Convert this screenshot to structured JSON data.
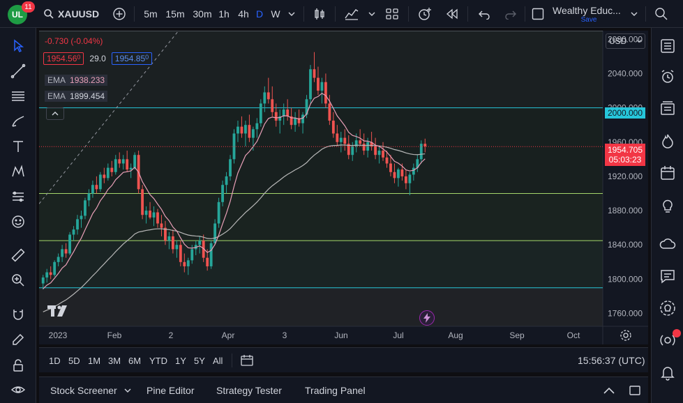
{
  "header": {
    "logo_text": "UL",
    "notification_count": "11",
    "symbol": "XAUUSD",
    "intervals": [
      "5m",
      "15m",
      "30m",
      "1h",
      "4h",
      "D",
      "W"
    ],
    "active_interval": "D",
    "layout_name": "Wealthy Educ...",
    "save_label": "Save"
  },
  "legend": {
    "change": "-0.730 (-0.04%)",
    "bid": "1954.56",
    "bid_suffix": "0",
    "spread": "29.0",
    "ask": "1954.85",
    "ask_suffix": "0",
    "ema1_label": "EMA",
    "ema1_value": "1938.233",
    "ema2_label": "EMA",
    "ema2_value": "1899.454"
  },
  "price_axis": {
    "currency": "USD",
    "ticks": [
      "2080.000",
      "2040.000",
      "2000.000",
      "1960.000",
      "1920.000",
      "1880.000",
      "1840.000",
      "1800.000",
      "1760.000"
    ],
    "highlight_2000": "2000.000",
    "current_price": "1954.705",
    "countdown": "05:03:23"
  },
  "time_axis": {
    "labels": [
      "2023",
      "Feb",
      "2",
      "Apr",
      "3",
      "Jun",
      "Jul",
      "Aug",
      "Sep",
      "Oct"
    ]
  },
  "range_bar": {
    "ranges": [
      "1D",
      "5D",
      "1M",
      "3M",
      "6M",
      "YTD",
      "1Y",
      "5Y",
      "All"
    ],
    "clock": "15:56:37 (UTC)"
  },
  "bottom_panel": {
    "tabs": [
      "Stock Screener",
      "Pine Editor",
      "Strategy Tester",
      "Trading Panel"
    ]
  },
  "colors": {
    "up": "#26a69a",
    "down": "#ef5350",
    "ema_fast": "#e9a0b8",
    "ema_slow": "#b8b8b8",
    "hline_cyan": "#26c6da",
    "hline_green": "#a5d66b",
    "accent": "#2962ff"
  },
  "chart_data": {
    "type": "candlestick",
    "ylim": [
      1745,
      2090
    ],
    "horizontal_levels": [
      2000,
      1900,
      1845,
      1790
    ],
    "candles": [
      [
        1795,
        1805,
        1788,
        1802
      ],
      [
        1802,
        1812,
        1796,
        1808
      ],
      [
        1808,
        1815,
        1800,
        1805
      ],
      [
        1805,
        1822,
        1803,
        1820
      ],
      [
        1820,
        1830,
        1815,
        1826
      ],
      [
        1826,
        1840,
        1820,
        1835
      ],
      [
        1835,
        1842,
        1825,
        1830
      ],
      [
        1830,
        1855,
        1828,
        1852
      ],
      [
        1852,
        1862,
        1845,
        1858
      ],
      [
        1858,
        1875,
        1852,
        1870
      ],
      [
        1870,
        1880,
        1860,
        1874
      ],
      [
        1874,
        1895,
        1870,
        1892
      ],
      [
        1892,
        1905,
        1885,
        1900
      ],
      [
        1900,
        1915,
        1895,
        1910
      ],
      [
        1910,
        1920,
        1900,
        1905
      ],
      [
        1905,
        1925,
        1902,
        1922
      ],
      [
        1922,
        1930,
        1912,
        1918
      ],
      [
        1918,
        1935,
        1915,
        1930
      ],
      [
        1930,
        1938,
        1920,
        1925
      ],
      [
        1925,
        1945,
        1922,
        1940
      ],
      [
        1940,
        1948,
        1930,
        1935
      ],
      [
        1935,
        1945,
        1928,
        1940
      ],
      [
        1940,
        1950,
        1925,
        1928
      ],
      [
        1928,
        1935,
        1918,
        1930
      ],
      [
        1930,
        1948,
        1928,
        1945
      ],
      [
        1945,
        1950,
        1900,
        1905
      ],
      [
        1905,
        1910,
        1870,
        1875
      ],
      [
        1875,
        1885,
        1865,
        1880
      ],
      [
        1880,
        1890,
        1870,
        1872
      ],
      [
        1872,
        1885,
        1862,
        1878
      ],
      [
        1878,
        1882,
        1860,
        1865
      ],
      [
        1865,
        1875,
        1850,
        1860
      ],
      [
        1860,
        1868,
        1840,
        1845
      ],
      [
        1845,
        1855,
        1835,
        1850
      ],
      [
        1850,
        1858,
        1830,
        1835
      ],
      [
        1835,
        1845,
        1825,
        1840
      ],
      [
        1840,
        1845,
        1815,
        1820
      ],
      [
        1820,
        1830,
        1808,
        1815
      ],
      [
        1815,
        1825,
        1805,
        1822
      ],
      [
        1822,
        1840,
        1818,
        1835
      ],
      [
        1835,
        1845,
        1828,
        1840
      ],
      [
        1840,
        1850,
        1830,
        1845
      ],
      [
        1845,
        1852,
        1820,
        1825
      ],
      [
        1825,
        1835,
        1810,
        1815
      ],
      [
        1815,
        1845,
        1812,
        1842
      ],
      [
        1842,
        1870,
        1840,
        1865
      ],
      [
        1865,
        1895,
        1860,
        1890
      ],
      [
        1890,
        1915,
        1885,
        1910
      ],
      [
        1910,
        1925,
        1900,
        1920
      ],
      [
        1920,
        1945,
        1915,
        1940
      ],
      [
        1940,
        1975,
        1935,
        1970
      ],
      [
        1970,
        1985,
        1960,
        1978
      ],
      [
        1978,
        1990,
        1965,
        1970
      ],
      [
        1970,
        1985,
        1955,
        1980
      ],
      [
        1980,
        1992,
        1960,
        1965
      ],
      [
        1965,
        1978,
        1950,
        1975
      ],
      [
        1975,
        1988,
        1965,
        1982
      ],
      [
        1982,
        2010,
        1978,
        2005
      ],
      [
        2005,
        2025,
        1995,
        2018
      ],
      [
        2018,
        2035,
        2005,
        2010
      ],
      [
        2010,
        2025,
        1990,
        1995
      ],
      [
        1995,
        2005,
        1978,
        1985
      ],
      [
        1985,
        1998,
        1970,
        1990
      ],
      [
        1990,
        2005,
        1980,
        1998
      ],
      [
        1998,
        2010,
        1985,
        1990
      ],
      [
        1990,
        2000,
        1975,
        1980
      ],
      [
        1980,
        1995,
        1972,
        1988
      ],
      [
        1988,
        1998,
        1978,
        1982
      ],
      [
        1982,
        1995,
        1970,
        1992
      ],
      [
        1992,
        2015,
        1988,
        2010
      ],
      [
        2010,
        2050,
        2005,
        2045
      ],
      [
        2045,
        2065,
        2030,
        2035
      ],
      [
        2035,
        2048,
        2015,
        2020
      ],
      [
        2020,
        2035,
        2005,
        2030
      ],
      [
        2030,
        2040,
        2000,
        2005
      ],
      [
        2005,
        2015,
        1980,
        1985
      ],
      [
        1985,
        1995,
        1965,
        1970
      ],
      [
        1970,
        1980,
        1955,
        1960
      ],
      [
        1960,
        1972,
        1948,
        1965
      ],
      [
        1965,
        1975,
        1950,
        1958
      ],
      [
        1958,
        1968,
        1940,
        1945
      ],
      [
        1945,
        1960,
        1938,
        1955
      ],
      [
        1955,
        1970,
        1948,
        1962
      ],
      [
        1962,
        1975,
        1955,
        1958
      ],
      [
        1958,
        1970,
        1945,
        1950
      ],
      [
        1950,
        1965,
        1942,
        1960
      ],
      [
        1960,
        1972,
        1950,
        1955
      ],
      [
        1955,
        1965,
        1940,
        1945
      ],
      [
        1945,
        1955,
        1935,
        1950
      ],
      [
        1950,
        1960,
        1938,
        1942
      ],
      [
        1942,
        1950,
        1930,
        1935
      ],
      [
        1935,
        1945,
        1920,
        1925
      ],
      [
        1925,
        1935,
        1912,
        1918
      ],
      [
        1918,
        1930,
        1908,
        1928
      ],
      [
        1928,
        1935,
        1915,
        1920
      ],
      [
        1920,
        1928,
        1905,
        1912
      ],
      [
        1912,
        1925,
        1898,
        1922
      ],
      [
        1922,
        1935,
        1915,
        1930
      ],
      [
        1930,
        1945,
        1925,
        1940
      ],
      [
        1940,
        1962,
        1935,
        1958
      ],
      [
        1958,
        1964,
        1948,
        1955
      ]
    ]
  }
}
